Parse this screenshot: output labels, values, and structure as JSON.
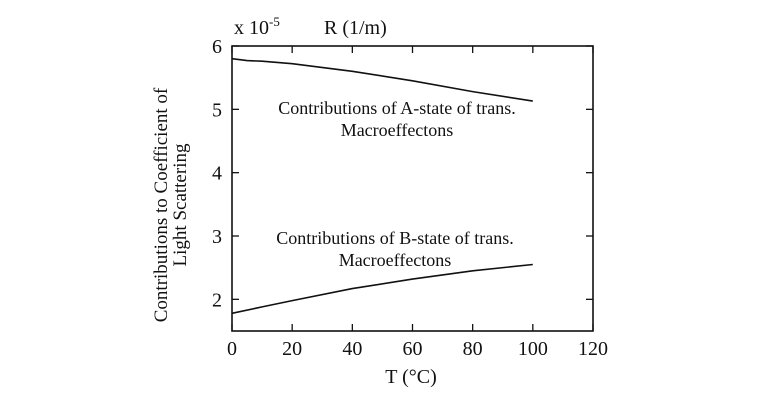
{
  "chart_data": {
    "type": "line",
    "scale_label": "x 10",
    "scale_exponent": "-5",
    "title": "R (1/m)",
    "xlabel": "T (°C)",
    "ylabel_lines": [
      "Contributions to Coefficient of",
      "Light Scattering"
    ],
    "xlim": [
      0,
      120
    ],
    "ylim": [
      1.5,
      6
    ],
    "x_ticks": [
      0,
      20,
      40,
      60,
      80,
      100,
      120
    ],
    "y_ticks": [
      2,
      3,
      4,
      5,
      6
    ],
    "series": [
      {
        "annotation": [
          "Contributions of A-state of trans.",
          "Macroeffectons"
        ],
        "x": [
          0,
          5,
          10,
          20,
          40,
          60,
          80,
          100
        ],
        "y": [
          5.8,
          5.77,
          5.76,
          5.72,
          5.6,
          5.45,
          5.28,
          5.13
        ]
      },
      {
        "annotation": [
          "Contributions of B-state of trans.",
          "Macroeffectons"
        ],
        "x": [
          0,
          10,
          20,
          40,
          60,
          80,
          100
        ],
        "y": [
          1.78,
          1.88,
          1.98,
          2.17,
          2.32,
          2.45,
          2.55
        ]
      }
    ]
  }
}
